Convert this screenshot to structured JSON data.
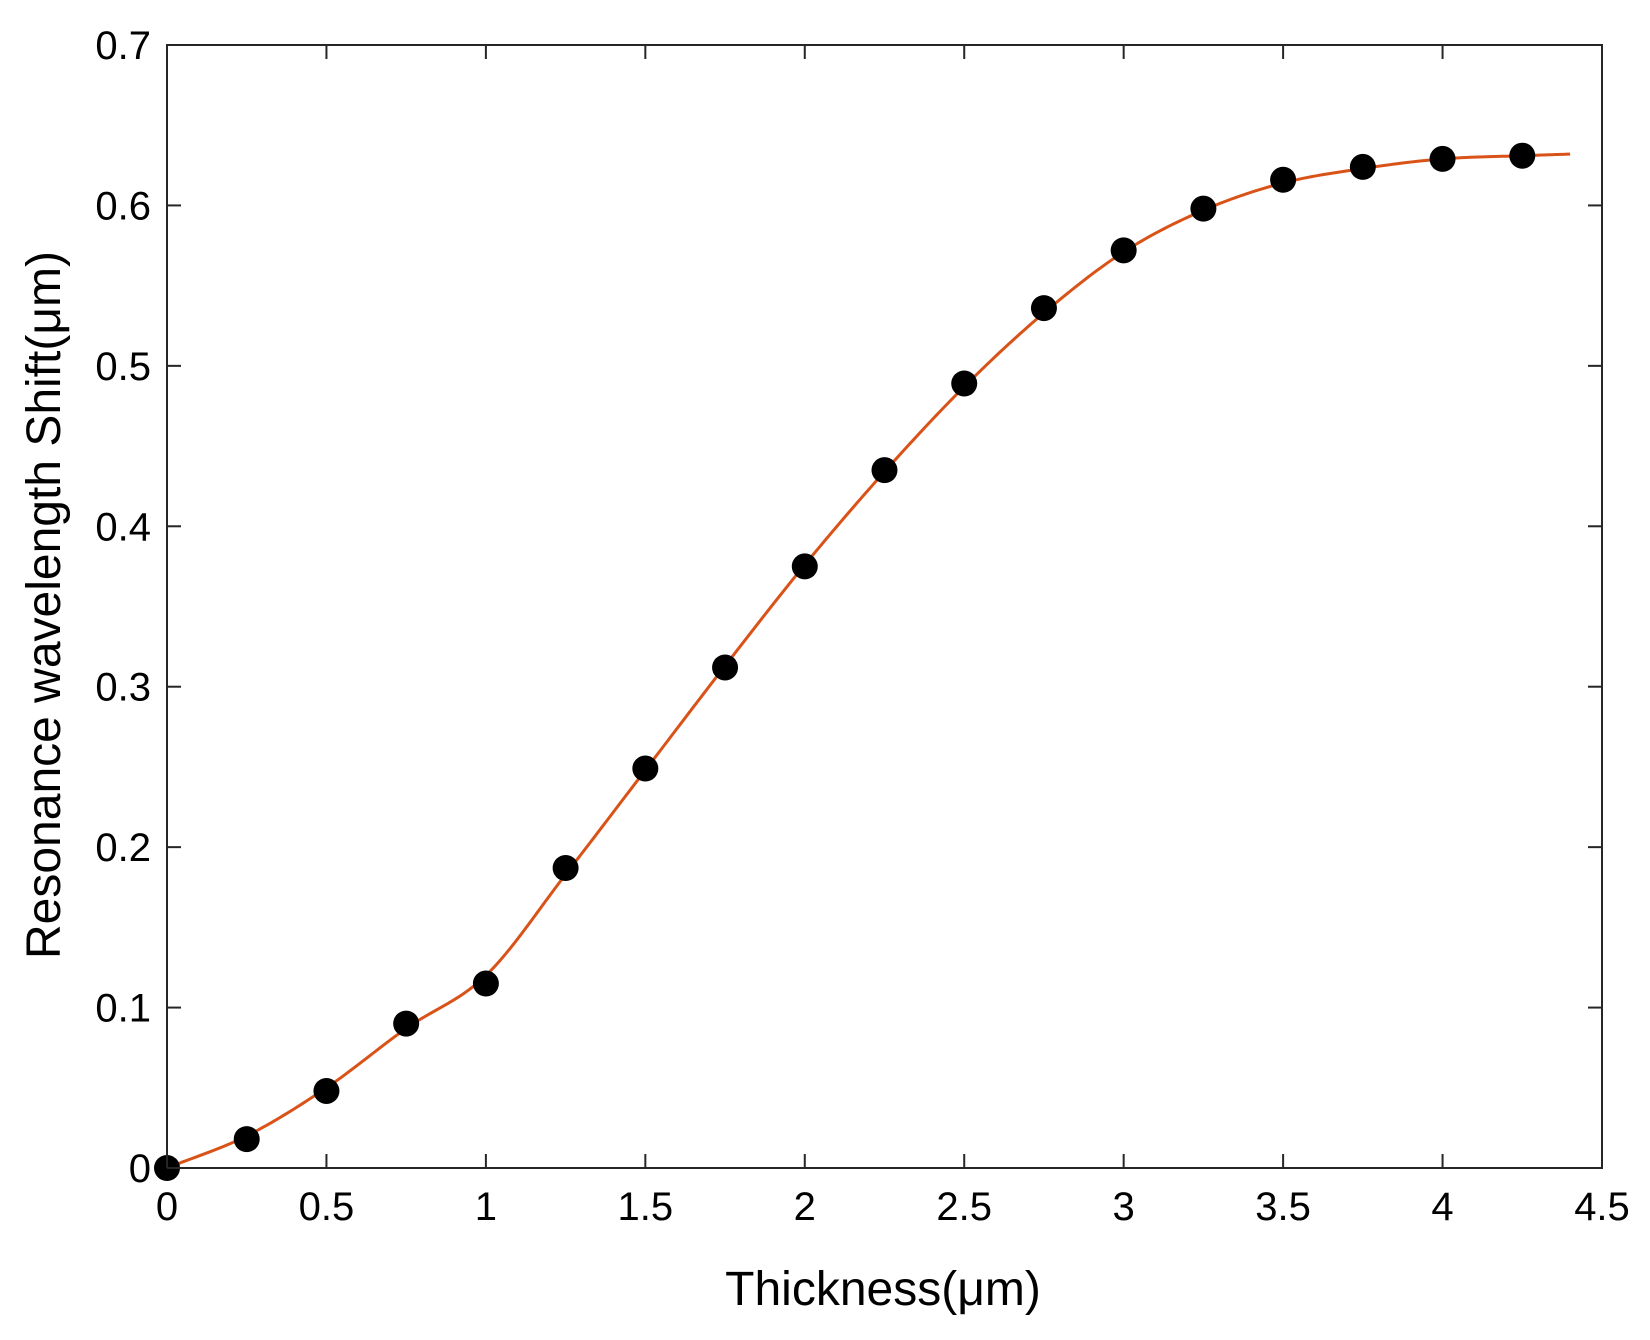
{
  "chart_data": {
    "type": "scatter",
    "title": "",
    "xlabel": "Thickness(μm)",
    "ylabel": "Resonance wavelength Shift(μm)",
    "xlim": [
      0,
      4.5
    ],
    "ylim": [
      0,
      0.7
    ],
    "xticks": [
      0,
      0.5,
      1,
      1.5,
      2,
      2.5,
      3,
      3.5,
      4,
      4.5
    ],
    "yticks": [
      0,
      0.1,
      0.2,
      0.3,
      0.4,
      0.5,
      0.6,
      0.7
    ],
    "xtick_labels": [
      "0",
      "0.5",
      "1",
      "1.5",
      "2",
      "2.5",
      "3",
      "3.5",
      "4",
      "4.5"
    ],
    "ytick_labels": [
      "0",
      "0.1",
      "0.2",
      "0.3",
      "0.4",
      "0.5",
      "0.6",
      "0.7"
    ],
    "grid": false,
    "series": [
      {
        "type": "scatter",
        "color": "#000000",
        "x": [
          0,
          0.25,
          0.5,
          0.75,
          1,
          1.25,
          1.5,
          1.75,
          2,
          2.25,
          2.5,
          2.75,
          3,
          3.25,
          3.5,
          3.75,
          4,
          4.25
        ],
        "y": [
          0,
          0.018,
          0.048,
          0.09,
          0.115,
          0.187,
          0.249,
          0.312,
          0.375,
          0.435,
          0.489,
          0.536,
          0.572,
          0.598,
          0.616,
          0.624,
          0.629,
          0.631
        ]
      },
      {
        "type": "line",
        "color": "#D95319",
        "x": [
          0,
          0.25,
          0.5,
          0.75,
          1,
          1.25,
          1.5,
          1.75,
          2,
          2.25,
          2.5,
          2.75,
          3,
          3.25,
          3.5,
          3.75,
          4,
          4.25,
          4.4
        ],
        "y": [
          0,
          0.02,
          0.05,
          0.087,
          0.12,
          0.183,
          0.248,
          0.313,
          0.376,
          0.434,
          0.487,
          0.533,
          0.571,
          0.597,
          0.614,
          0.623,
          0.629,
          0.631,
          0.632
        ]
      }
    ]
  }
}
